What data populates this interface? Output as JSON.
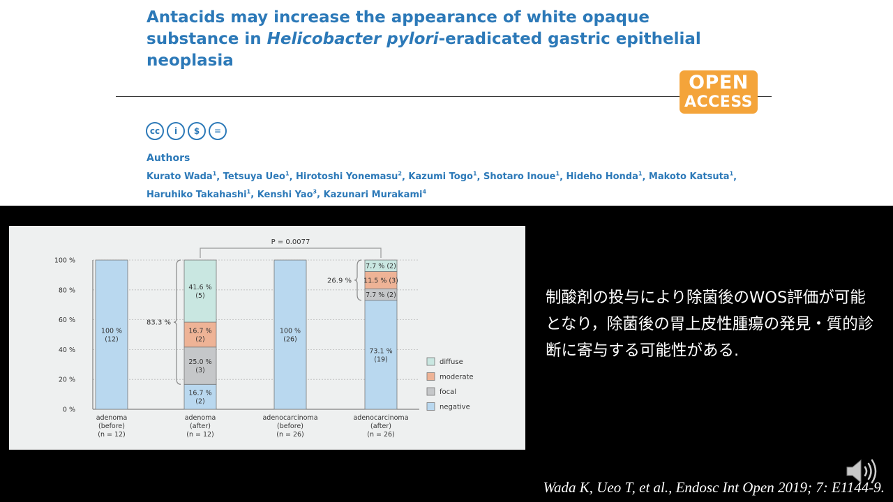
{
  "header": {
    "title_part1": "Antacids may increase the appearance of white opaque substance in ",
    "title_italic": "Helicobacter pylori",
    "title_part2": "-eradicated gastric epithelial neoplasia",
    "open_access_line1": "OPEN",
    "open_access_line2": "ACCESS",
    "license_icons": [
      "cc",
      "by",
      "nc",
      "nd"
    ],
    "license_glyphs": [
      "cc",
      "i",
      "$",
      "="
    ],
    "authors_heading": "Authors",
    "authors": [
      {
        "name": "Kurato Wada",
        "aff": "1"
      },
      {
        "name": "Tetsuya Ueo",
        "aff": "1"
      },
      {
        "name": "Hirotoshi Yonemasu",
        "aff": "2"
      },
      {
        "name": "Kazumi Togo",
        "aff": "1"
      },
      {
        "name": "Shotaro Inoue",
        "aff": "1"
      },
      {
        "name": "Hideho Honda",
        "aff": "1"
      },
      {
        "name": "Makoto Katsuta",
        "aff": "1"
      },
      {
        "name": "Haruhiko Takahashi",
        "aff": "1"
      },
      {
        "name": "Kenshi Yao",
        "aff": "3"
      },
      {
        "name": "Kazunari Murakami",
        "aff": "4"
      }
    ]
  },
  "chart_data": {
    "type": "bar",
    "stacked": true,
    "categories": [
      [
        "adenoma",
        "(before)",
        "(n = 12)"
      ],
      [
        "adenoma",
        "(after)",
        "(n = 12)"
      ],
      [
        "adenocarcinoma",
        "(before)",
        "(n = 26)"
      ],
      [
        "adenocarcinoma",
        "(after)",
        "(n = 26)"
      ]
    ],
    "series": [
      {
        "name": "negative",
        "color": "#b9d8ef",
        "values": [
          100,
          16.7,
          100,
          73.1
        ],
        "labels": [
          [
            "100 %",
            "(12)"
          ],
          [
            "16.7 %",
            "(2)"
          ],
          [
            "100 %",
            "(26)"
          ],
          [
            "73.1 %",
            "(19)"
          ]
        ]
      },
      {
        "name": "focal",
        "color": "#c5c7c9",
        "values": [
          0,
          25.0,
          0,
          7.7
        ],
        "labels": [
          null,
          [
            "25.0 %",
            "(3)"
          ],
          null,
          [
            "7.7 % (2)"
          ]
        ]
      },
      {
        "name": "moderate",
        "color": "#eeb396",
        "values": [
          0,
          16.7,
          0,
          11.5
        ],
        "labels": [
          null,
          [
            "16.7 %",
            "(2)"
          ],
          null,
          [
            "11.5 % (3)"
          ]
        ]
      },
      {
        "name": "diffuse",
        "color": "#c9e7e1",
        "values": [
          0,
          41.6,
          0,
          7.7
        ],
        "labels": [
          null,
          [
            "41.6 %",
            "(5)"
          ],
          null,
          [
            "7.7 % (2)"
          ]
        ]
      }
    ],
    "legend_order": [
      "diffuse",
      "moderate",
      "focal",
      "negative"
    ],
    "legend_position": "right",
    "y_ticks": [
      "0 %",
      "20 %",
      "40 %",
      "60 %",
      "80 %",
      "100 %"
    ],
    "ylim": [
      0,
      100
    ],
    "grid": true,
    "brackets": [
      {
        "category": 1,
        "from": 16.7,
        "to": 100,
        "label": "83.3 %"
      },
      {
        "category": 3,
        "from": 73.1,
        "to": 100,
        "label": "26.9 %"
      }
    ],
    "significance": {
      "from_category": 1,
      "to_category": 3,
      "label": "P = 0.0077"
    }
  },
  "japanese_summary": "制酸剤の投与により除菌後のWOS評価が可能となり，除菌後の胃上皮性腫瘍の発見・質的診断に寄与する可能性がある.",
  "citation": "Wada K, Ueo T, et al., Endosc Int Open 2019; 7: E1144-9.",
  "speaker_icon": "speaker-icon"
}
